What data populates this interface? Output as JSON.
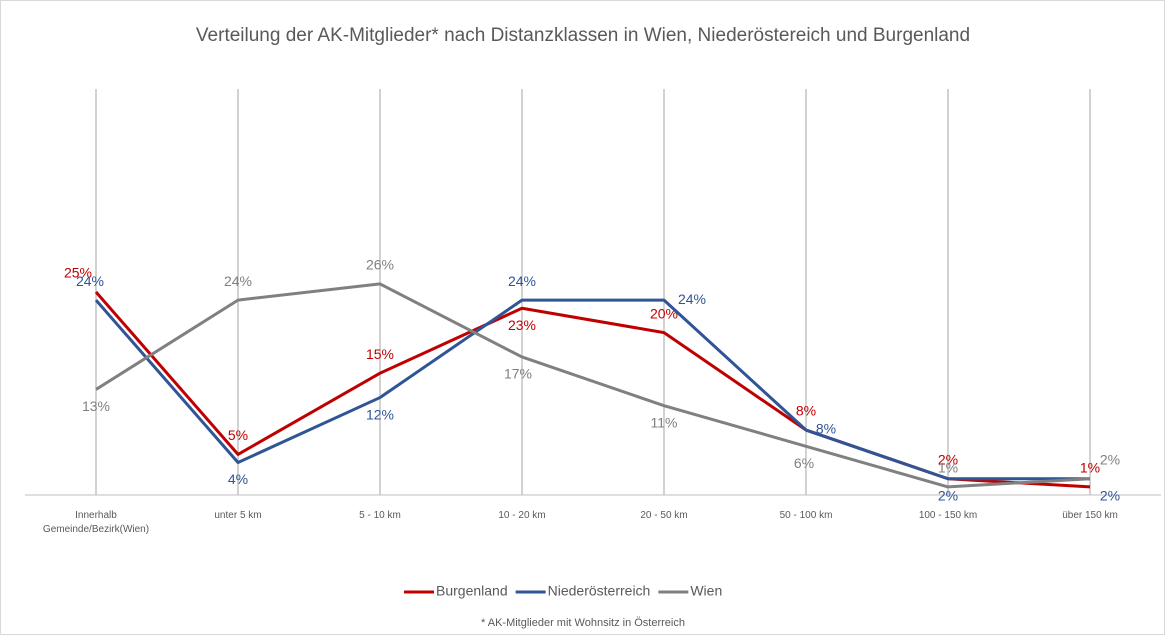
{
  "chart_data": {
    "type": "line",
    "title": "Verteilung der AK-Mitglieder* nach Distanzklassen in Wien, Niederöstereich und Burgenland",
    "footnote": "* AK-Mitglieder mit Wohnsitz in Österreich",
    "categories": [
      "Innerhalb Gemeinde/Bezirk(Wien)",
      "unter 5 km",
      "5 - 10 km",
      "10 - 20 km",
      "20 - 50 km",
      "50 - 100 km",
      "100 - 150 km",
      "über 150 km"
    ],
    "ylim": [
      0,
      50
    ],
    "grid": true,
    "legend": "bottom",
    "series": [
      {
        "name": "Burgenland",
        "color": "#c00000",
        "values": [
          25,
          5,
          15,
          23,
          20,
          8,
          2,
          1
        ],
        "value_labels": [
          "25%",
          "5%",
          "15%",
          "23%",
          "20%",
          "8%",
          "2%",
          "1%"
        ]
      },
      {
        "name": "Niederösterreich",
        "color": "#2f5597",
        "values": [
          24,
          4,
          12,
          24,
          24,
          8,
          2,
          2
        ],
        "value_labels": [
          "24%",
          "4%",
          "12%",
          "24%",
          "24%",
          "8%",
          "2%",
          "2%"
        ]
      },
      {
        "name": "Wien",
        "color": "#808080",
        "values": [
          13,
          24,
          26,
          17,
          11,
          6,
          1,
          2
        ],
        "value_labels": [
          "13%",
          "24%",
          "26%",
          "17%",
          "11%",
          "6%",
          "1%",
          "2%"
        ]
      }
    ]
  }
}
